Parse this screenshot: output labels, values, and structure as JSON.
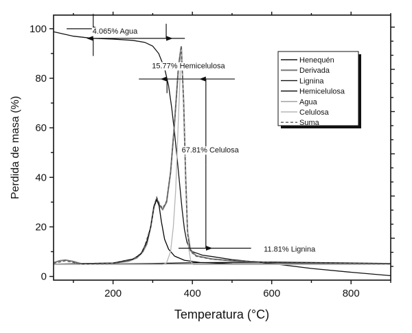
{
  "chart_data": {
    "type": "line",
    "title": "",
    "xlabel": "Temperatura (°C)",
    "ylabel": "Perdida de masa (%)",
    "xlim": [
      50,
      900
    ],
    "ylim": [
      -1.5,
      105.5
    ],
    "xticks": [
      200,
      400,
      600,
      800
    ],
    "yticks": [
      0,
      20,
      40,
      60,
      80,
      100
    ],
    "grid": false,
    "legend_position": "top-right",
    "series": [
      {
        "name": "Henequén",
        "color": "#111111",
        "dash": false,
        "points": [
          [
            50,
            98.8
          ],
          [
            100,
            97
          ],
          [
            150,
            96.1
          ],
          [
            200,
            95.8
          ],
          [
            250,
            95.3
          ],
          [
            280,
            94.5
          ],
          [
            300,
            93
          ],
          [
            315,
            90
          ],
          [
            330,
            84
          ],
          [
            340,
            77
          ],
          [
            348,
            68
          ],
          [
            355,
            58
          ],
          [
            362,
            47
          ],
          [
            368,
            37
          ],
          [
            374,
            27
          ],
          [
            380,
            19
          ],
          [
            386,
            14
          ],
          [
            392,
            11.5
          ],
          [
            400,
            10
          ],
          [
            425,
            8.6
          ],
          [
            450,
            8
          ],
          [
            500,
            6.8
          ],
          [
            600,
            5.2
          ],
          [
            700,
            3.2
          ],
          [
            800,
            1.7
          ],
          [
            900,
            0.3
          ]
        ]
      },
      {
        "name": "Derivada",
        "color": "#777777",
        "dash": false,
        "points": [
          [
            50,
            5.5
          ],
          [
            65,
            6.3
          ],
          [
            80,
            6.6
          ],
          [
            100,
            6
          ],
          [
            120,
            5.1
          ],
          [
            200,
            5.3
          ],
          [
            240,
            6.2
          ],
          [
            260,
            7.5
          ],
          [
            275,
            10
          ],
          [
            285,
            13
          ],
          [
            295,
            20
          ],
          [
            303,
            28
          ],
          [
            310,
            31.5
          ],
          [
            318,
            28.5
          ],
          [
            325,
            27
          ],
          [
            335,
            30
          ],
          [
            345,
            42
          ],
          [
            355,
            62
          ],
          [
            365,
            85
          ],
          [
            372,
            93
          ],
          [
            378,
            70
          ],
          [
            383,
            40
          ],
          [
            388,
            18
          ],
          [
            395,
            10.5
          ],
          [
            410,
            8.3
          ],
          [
            450,
            7
          ],
          [
            500,
            6.3
          ],
          [
            600,
            5.6
          ],
          [
            700,
            5.3
          ],
          [
            900,
            5.1
          ]
        ]
      },
      {
        "name": "Lignina",
        "color": "#111111",
        "dash": false,
        "points": [
          [
            50,
            4.8
          ],
          [
            300,
            5.2
          ],
          [
            400,
            5.5
          ],
          [
            600,
            5.8
          ],
          [
            900,
            5.2
          ]
        ]
      },
      {
        "name": "Hemicelulosa",
        "color": "#000000",
        "dash": false,
        "points": [
          [
            50,
            5
          ],
          [
            200,
            5.4
          ],
          [
            250,
            7
          ],
          [
            270,
            9
          ],
          [
            285,
            14
          ],
          [
            295,
            20
          ],
          [
            303,
            28
          ],
          [
            310,
            31
          ],
          [
            316,
            28.5
          ],
          [
            322,
            22
          ],
          [
            330,
            15
          ],
          [
            340,
            11
          ],
          [
            355,
            8.2
          ],
          [
            380,
            6.5
          ],
          [
            420,
            5.6
          ],
          [
            500,
            5.1
          ],
          [
            900,
            5
          ]
        ]
      },
      {
        "name": "Agua",
        "color": "#999999",
        "dash": false,
        "points": [
          [
            50,
            5
          ],
          [
            900,
            5
          ]
        ]
      },
      {
        "name": "Celulosa",
        "color": "#b5b5b5",
        "dash": false,
        "points": [
          [
            50,
            4.8
          ],
          [
            325,
            4.8
          ],
          [
            335,
            5.5
          ],
          [
            345,
            10
          ],
          [
            352,
            20
          ],
          [
            358,
            35
          ],
          [
            365,
            65
          ],
          [
            372,
            93
          ],
          [
            378,
            70
          ],
          [
            384,
            35
          ],
          [
            390,
            12
          ],
          [
            396,
            6
          ],
          [
            402,
            4.8
          ],
          [
            900,
            4.8
          ]
        ]
      },
      {
        "name": "Suma",
        "color": "#555555",
        "dash": true,
        "points": [
          [
            50,
            5.3
          ],
          [
            80,
            6.3
          ],
          [
            120,
            5
          ],
          [
            200,
            5.3
          ],
          [
            250,
            6.8
          ],
          [
            275,
            10
          ],
          [
            295,
            20
          ],
          [
            303,
            28.5
          ],
          [
            310,
            32
          ],
          [
            318,
            29
          ],
          [
            325,
            27.5
          ],
          [
            335,
            30.5
          ],
          [
            345,
            42
          ],
          [
            355,
            62
          ],
          [
            365,
            85
          ],
          [
            372,
            93
          ],
          [
            378,
            70
          ],
          [
            383,
            40
          ],
          [
            388,
            17
          ],
          [
            395,
            10
          ],
          [
            410,
            8.1
          ],
          [
            450,
            6.9
          ],
          [
            600,
            5.6
          ],
          [
            900,
            5.1
          ]
        ]
      }
    ],
    "annotations": [
      {
        "text": "4.065% Agua",
        "x": 205,
        "y": 98
      },
      {
        "text": "15.77% Hemicelulosa",
        "x": 390,
        "y": 84
      },
      {
        "text": "67.81% Celulosa",
        "x": 445,
        "y": 50
      },
      {
        "text": "11.81% Lignina",
        "x": 645,
        "y": 10
      }
    ],
    "reference_lines": [
      {
        "y": 100,
        "x1": 83,
        "x2": 226
      },
      {
        "y": 96.1,
        "x1": 148,
        "x2": 381
      },
      {
        "y": 79.7,
        "x1": 265,
        "x2": 507
      },
      {
        "y": 11.4,
        "x1": 365,
        "x2": 548
      }
    ],
    "arrows": [
      {
        "x": 150,
        "from": 106,
        "to": 100
      },
      {
        "x": 150,
        "from": 89,
        "to": 96.1
      },
      {
        "x": 334,
        "from": 102,
        "to": 96.1
      },
      {
        "x": 336,
        "from": 74,
        "to": 79.7
      },
      {
        "x": 434,
        "from": 45,
        "to": 79.7
      },
      {
        "x": 434,
        "from": 45,
        "to": 11.4
      }
    ]
  }
}
